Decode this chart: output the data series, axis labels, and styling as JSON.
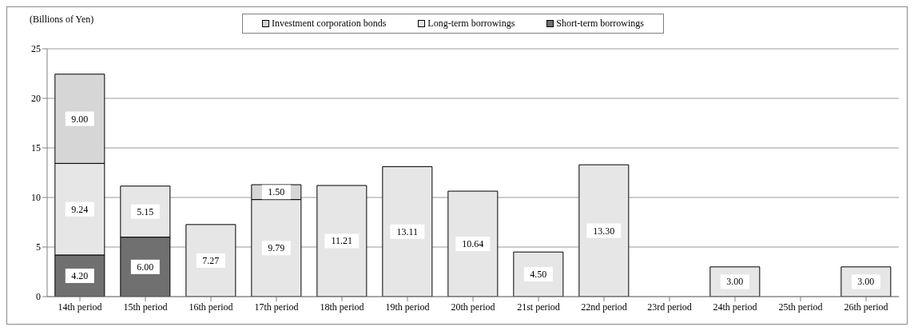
{
  "chart_data": {
    "type": "bar",
    "stacked": true,
    "ylabel": "(Billions of Yen)",
    "categories": [
      "14th period",
      "15th period",
      "16th period",
      "17th period",
      "18th period",
      "19th period",
      "20th period",
      "21st period",
      "22nd period",
      "23rd period",
      "24th period",
      "25th period",
      "26th period"
    ],
    "series": [
      {
        "name": "Short-term borrowings",
        "color": "#707070",
        "values": [
          4.2,
          6.0,
          null,
          null,
          null,
          null,
          null,
          null,
          null,
          null,
          null,
          null,
          null
        ],
        "value_labels": [
          "4.20",
          "6.00",
          null,
          null,
          null,
          null,
          null,
          null,
          null,
          null,
          null,
          null,
          null
        ]
      },
      {
        "name": "Long-term borrowings",
        "color": "#e6e6e6",
        "values": [
          9.24,
          5.15,
          7.27,
          9.79,
          11.21,
          13.11,
          10.64,
          4.5,
          13.3,
          null,
          3.0,
          null,
          3.0
        ],
        "value_labels": [
          "9.24",
          "5.15",
          "7.27",
          "9.79",
          "11.21",
          "13.11",
          "10.64",
          "4.50",
          "13.30",
          null,
          "3.00",
          null,
          "3.00"
        ]
      },
      {
        "name": "Investment corporation bonds",
        "color": "#d6d6d6",
        "values": [
          9.0,
          null,
          null,
          1.5,
          null,
          null,
          null,
          null,
          null,
          null,
          null,
          null,
          null
        ],
        "value_labels": [
          "9.00",
          null,
          null,
          "1.50",
          null,
          null,
          null,
          null,
          null,
          null,
          null,
          null,
          null
        ]
      }
    ],
    "ylim": [
      0,
      25
    ],
    "yticks": [
      0,
      5,
      10,
      15,
      20,
      25
    ],
    "grid": "y",
    "legend": "top"
  }
}
